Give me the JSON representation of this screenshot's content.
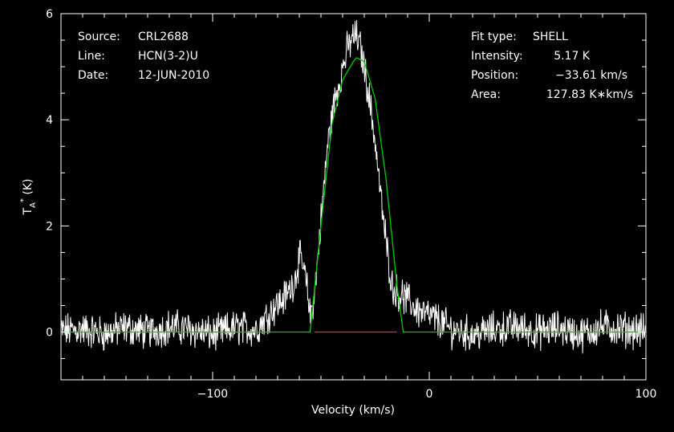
{
  "chart_data": {
    "type": "line",
    "xlabel": "Velocity (km/s)",
    "ylabel": "T",
    "ylabel_sub": "A",
    "ylabel_sup": "*",
    "ylabel_unit": "(K)",
    "xlim": [
      -170,
      100
    ],
    "ylim": [
      -0.9,
      6.0
    ],
    "x_ticks": [
      -100,
      0,
      100
    ],
    "x_tick_labels": [
      "−100",
      "0",
      "100"
    ],
    "y_ticks": [
      0,
      2,
      4,
      6
    ],
    "y_tick_labels": [
      "0",
      "2",
      "4",
      "6"
    ],
    "grid": false,
    "info_left": [
      {
        "key": "Source:",
        "value": "CRL2688"
      },
      {
        "key": "Line:",
        "value": "HCN(3-2)U"
      },
      {
        "key": "Date:",
        "value": "12-JUN-2010"
      }
    ],
    "info_right": [
      {
        "key": "Fit type:",
        "value": "SHELL"
      },
      {
        "key": "Intensity:",
        "value": "5.17 K"
      },
      {
        "key": "Position:",
        "value": "−33.61 km/s"
      },
      {
        "key": "Area:",
        "value": "127.83 K∗km/s"
      }
    ],
    "series": [
      {
        "role": "spectrum",
        "color": "#ffffff",
        "x": [
          -170,
          -160,
          -150,
          -140,
          -130,
          -120,
          -110,
          -100,
          -90,
          -80,
          -75,
          -72,
          -68,
          -65,
          -62,
          -60,
          -58,
          -56,
          -55,
          -53,
          -50,
          -47,
          -44,
          -41,
          -38,
          -36,
          -34,
          -32,
          -30,
          -28,
          -25,
          -22,
          -19,
          -17,
          -15,
          -13,
          -10,
          -5,
          0,
          5,
          10,
          14,
          20,
          30,
          40,
          50,
          60,
          70,
          80,
          90,
          100
        ],
        "y": [
          0.02,
          0.05,
          -0.03,
          0.08,
          0.0,
          0.1,
          0.05,
          -0.05,
          0.08,
          0.05,
          0.3,
          0.45,
          0.6,
          0.75,
          1.0,
          1.4,
          1.2,
          0.7,
          0.3,
          0.7,
          2.1,
          3.5,
          4.3,
          4.8,
          5.3,
          5.5,
          5.6,
          5.4,
          5.0,
          4.5,
          3.6,
          2.4,
          1.4,
          0.85,
          0.75,
          0.7,
          0.6,
          0.4,
          0.3,
          0.2,
          0.05,
          0.02,
          -0.05,
          0.05,
          0.1,
          0.0,
          0.08,
          -0.05,
          0.1,
          0.05,
          0.02
        ]
      },
      {
        "role": "shell fit",
        "color": "#00cc00",
        "x": [
          -170,
          -55,
          -50,
          -45,
          -40,
          -35,
          -33.6,
          -30,
          -25,
          -20,
          -15,
          -12,
          100
        ],
        "y": [
          0,
          0,
          2.0,
          3.9,
          4.75,
          5.1,
          5.17,
          5.1,
          4.4,
          2.9,
          0.9,
          0,
          0
        ]
      },
      {
        "role": "fit window",
        "color": "#ff2222",
        "x": [
          -53,
          -15
        ],
        "y": [
          0,
          0
        ]
      }
    ]
  }
}
